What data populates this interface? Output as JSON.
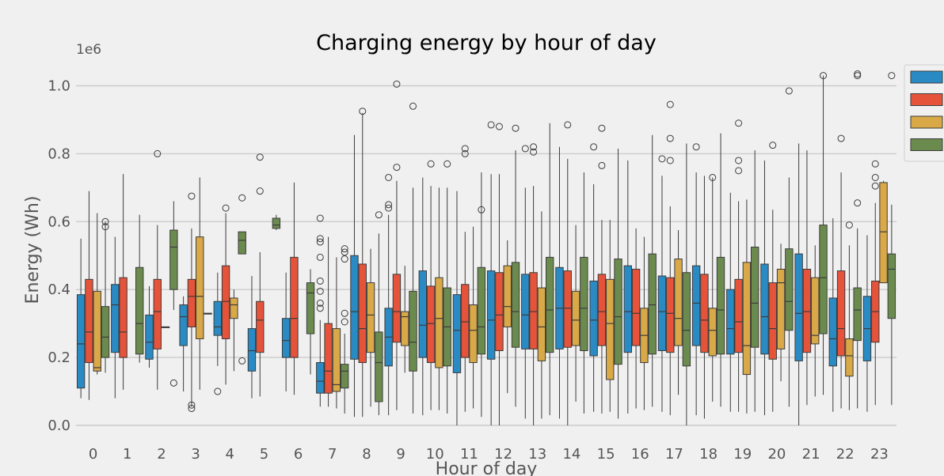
{
  "chart_data": {
    "type": "box",
    "title": "Charging energy by hour of day",
    "xlabel": "Hour of day",
    "ylabel": "Energy (Wh)",
    "y_offset_text": "1e6",
    "ylim": [
      -0.05,
      1.07
    ],
    "yticks": [
      "0.0",
      "0.2",
      "0.4",
      "0.6",
      "0.8",
      "1.0"
    ],
    "ytick_values": [
      0,
      0.2,
      0.4,
      0.6,
      0.8,
      1.0
    ],
    "grid": true,
    "legend_position": "right (labels cut off)",
    "categories": [
      "0",
      "1",
      "2",
      "3",
      "4",
      "5",
      "6",
      "7",
      "8",
      "9",
      "10",
      "11",
      "12",
      "13",
      "14",
      "15",
      "16",
      "17",
      "18",
      "19",
      "20",
      "21",
      "22",
      "23"
    ],
    "series": [
      {
        "color": "#2a8ac4",
        "boxes": [
          {
            "wl": 0.08,
            "q1": 0.11,
            "med": 0.24,
            "q3": 0.385,
            "wh": 0.55,
            "out": []
          },
          {
            "wl": 0.08,
            "q1": 0.215,
            "med": 0.355,
            "q3": 0.415,
            "wh": 0.555,
            "out": []
          },
          {
            "wl": 0.17,
            "q1": 0.195,
            "med": 0.245,
            "q3": 0.325,
            "wh": 0.41,
            "out": []
          },
          {
            "wl": 0.1,
            "q1": 0.235,
            "med": 0.32,
            "q3": 0.355,
            "wh": 0.38,
            "out": []
          },
          {
            "wl": 0.175,
            "q1": 0.265,
            "med": 0.29,
            "q3": 0.365,
            "wh": 0.45,
            "out": [
              0.1
            ]
          },
          {
            "wl": 0.08,
            "q1": 0.16,
            "med": 0.22,
            "q3": 0.285,
            "wh": 0.44,
            "out": []
          },
          {
            "wl": 0.1,
            "q1": 0.2,
            "med": 0.25,
            "q3": 0.315,
            "wh": 0.45,
            "out": []
          },
          {
            "wl": 0.055,
            "q1": 0.095,
            "med": 0.13,
            "q3": 0.185,
            "wh": 0.31,
            "out": [
              0.61,
              0.55,
              0.54,
              0.495,
              0.425,
              0.395,
              0.36,
              0.345
            ]
          },
          {
            "wl": 0.025,
            "q1": 0.195,
            "med": 0.335,
            "q3": 0.5,
            "wh": 0.855,
            "out": []
          },
          {
            "wl": 0.03,
            "q1": 0.175,
            "med": 0.26,
            "q3": 0.345,
            "wh": 0.62,
            "out": [
              0.73,
              0.65,
              0.64
            ]
          },
          {
            "wl": 0.03,
            "q1": 0.2,
            "med": 0.295,
            "q3": 0.455,
            "wh": 0.73,
            "out": []
          },
          {
            "wl": 0.0,
            "q1": 0.155,
            "med": 0.28,
            "q3": 0.385,
            "wh": 0.69,
            "out": []
          },
          {
            "wl": 0.0,
            "q1": 0.195,
            "med": 0.31,
            "q3": 0.455,
            "wh": 0.74,
            "out": [
              0.885
            ]
          },
          {
            "wl": 0.02,
            "q1": 0.225,
            "med": 0.325,
            "q3": 0.445,
            "wh": 0.7,
            "out": [
              0.815
            ]
          },
          {
            "wl": 0.02,
            "q1": 0.225,
            "med": 0.345,
            "q3": 0.465,
            "wh": 0.82,
            "out": []
          },
          {
            "wl": 0.04,
            "q1": 0.205,
            "med": 0.31,
            "q3": 0.425,
            "wh": 0.71,
            "out": [
              0.82
            ]
          },
          {
            "wl": 0.035,
            "q1": 0.215,
            "med": 0.335,
            "q3": 0.47,
            "wh": 0.78,
            "out": []
          },
          {
            "wl": 0.04,
            "q1": 0.22,
            "med": 0.335,
            "q3": 0.44,
            "wh": 0.735,
            "out": [
              0.785
            ]
          },
          {
            "wl": 0.03,
            "q1": 0.235,
            "med": 0.36,
            "q3": 0.47,
            "wh": 0.745,
            "out": [
              0.82
            ]
          },
          {
            "wl": 0.04,
            "q1": 0.21,
            "med": 0.285,
            "q3": 0.4,
            "wh": 0.685,
            "out": []
          },
          {
            "wl": 0.03,
            "q1": 0.21,
            "med": 0.32,
            "q3": 0.475,
            "wh": 0.78,
            "out": []
          },
          {
            "wl": 0.0,
            "q1": 0.19,
            "med": 0.33,
            "q3": 0.505,
            "wh": 0.83,
            "out": []
          },
          {
            "wl": 0.04,
            "q1": 0.175,
            "med": 0.255,
            "q3": 0.375,
            "wh": 0.61,
            "out": []
          },
          {
            "wl": 0.04,
            "q1": 0.19,
            "med": 0.285,
            "q3": 0.38,
            "wh": 0.56,
            "out": []
          }
        ]
      },
      {
        "color": "#e5533a",
        "boxes": [
          {
            "wl": 0.075,
            "q1": 0.185,
            "med": 0.275,
            "q3": 0.43,
            "wh": 0.69,
            "out": []
          },
          {
            "wl": 0.105,
            "q1": 0.2,
            "med": 0.275,
            "q3": 0.435,
            "wh": 0.74,
            "out": []
          },
          {
            "wl": 0.105,
            "q1": 0.225,
            "med": 0.335,
            "q3": 0.43,
            "wh": 0.59,
            "out": [
              0.8
            ]
          },
          {
            "wl": 0.055,
            "q1": 0.29,
            "med": 0.38,
            "q3": 0.43,
            "wh": 0.58,
            "out": [
              0.675,
              0.06,
              0.05
            ]
          },
          {
            "wl": 0.12,
            "q1": 0.255,
            "med": 0.365,
            "q3": 0.47,
            "wh": 0.625,
            "out": [
              0.64
            ]
          },
          {
            "wl": 0.085,
            "q1": 0.215,
            "med": 0.31,
            "q3": 0.365,
            "wh": 0.51,
            "out": [
              0.79,
              0.69
            ]
          },
          {
            "wl": 0.09,
            "q1": 0.2,
            "med": 0.315,
            "q3": 0.495,
            "wh": 0.715,
            "out": []
          },
          {
            "wl": 0.055,
            "q1": 0.095,
            "med": 0.16,
            "q3": 0.3,
            "wh": 0.555,
            "out": []
          },
          {
            "wl": 0.025,
            "q1": 0.185,
            "med": 0.285,
            "q3": 0.475,
            "wh": 0.92,
            "out": [
              0.925
            ]
          },
          {
            "wl": 0.045,
            "q1": 0.245,
            "med": 0.335,
            "q3": 0.445,
            "wh": 0.72,
            "out": [
              1.005,
              0.76
            ]
          },
          {
            "wl": 0.045,
            "q1": 0.185,
            "med": 0.3,
            "q3": 0.41,
            "wh": 0.705,
            "out": [
              0.77
            ]
          },
          {
            "wl": 0.04,
            "q1": 0.2,
            "med": 0.305,
            "q3": 0.415,
            "wh": 0.57,
            "out": [
              0.815,
              0.8
            ]
          },
          {
            "wl": 0.0,
            "q1": 0.22,
            "med": 0.325,
            "q3": 0.45,
            "wh": 0.74,
            "out": [
              0.88
            ]
          },
          {
            "wl": 0.0,
            "q1": 0.225,
            "med": 0.335,
            "q3": 0.45,
            "wh": 0.705,
            "out": [
              0.82,
              0.805
            ]
          },
          {
            "wl": 0.0,
            "q1": 0.23,
            "med": 0.345,
            "q3": 0.455,
            "wh": 0.785,
            "out": [
              0.885
            ]
          },
          {
            "wl": 0.035,
            "q1": 0.235,
            "med": 0.335,
            "q3": 0.445,
            "wh": 0.605,
            "out": [
              0.875,
              0.765
            ]
          },
          {
            "wl": 0.05,
            "q1": 0.235,
            "med": 0.33,
            "q3": 0.46,
            "wh": 0.58,
            "out": []
          },
          {
            "wl": 0.03,
            "q1": 0.215,
            "med": 0.33,
            "q3": 0.435,
            "wh": 0.645,
            "out": [
              0.945,
              0.845,
              0.78
            ]
          },
          {
            "wl": 0.02,
            "q1": 0.215,
            "med": 0.31,
            "q3": 0.445,
            "wh": 0.735,
            "out": []
          },
          {
            "wl": 0.04,
            "q1": 0.215,
            "med": 0.305,
            "q3": 0.43,
            "wh": 0.66,
            "out": [
              0.89,
              0.78,
              0.75
            ]
          },
          {
            "wl": 0.04,
            "q1": 0.195,
            "med": 0.285,
            "q3": 0.42,
            "wh": 0.635,
            "out": [
              0.825
            ]
          },
          {
            "wl": 0.06,
            "q1": 0.215,
            "med": 0.335,
            "q3": 0.46,
            "wh": 0.81,
            "out": []
          },
          {
            "wl": 0.05,
            "q1": 0.205,
            "med": 0.285,
            "q3": 0.455,
            "wh": 0.745,
            "out": [
              0.845
            ]
          },
          {
            "wl": 0.06,
            "q1": 0.245,
            "med": 0.335,
            "q3": 0.425,
            "wh": 0.655,
            "out": [
              0.77,
              0.73,
              0.705
            ]
          }
        ]
      },
      {
        "color": "#d9a847",
        "boxes": [
          {
            "wl": 0.15,
            "q1": 0.16,
            "med": 0.17,
            "q3": 0.395,
            "wh": 0.625,
            "out": []
          },
          null,
          {
            "wl": 0.29,
            "q1": 0.29,
            "med": 0.29,
            "q3": 0.29,
            "wh": 0.29,
            "out": []
          },
          {
            "wl": 0.105,
            "q1": 0.255,
            "med": 0.38,
            "q3": 0.555,
            "wh": 0.73,
            "out": []
          },
          {
            "wl": 0.16,
            "q1": 0.315,
            "med": 0.355,
            "q3": 0.375,
            "wh": 0.4,
            "out": []
          },
          null,
          null,
          {
            "wl": 0.05,
            "q1": 0.1,
            "med": 0.12,
            "q3": 0.285,
            "wh": 0.495,
            "out": []
          },
          {
            "wl": 0.055,
            "q1": 0.215,
            "med": 0.325,
            "q3": 0.42,
            "wh": 0.52,
            "out": []
          },
          {
            "wl": 0.155,
            "q1": 0.235,
            "med": 0.32,
            "q3": 0.335,
            "wh": 0.47,
            "out": []
          },
          {
            "wl": 0.045,
            "q1": 0.17,
            "med": 0.315,
            "q3": 0.435,
            "wh": 0.7,
            "out": []
          },
          {
            "wl": 0.05,
            "q1": 0.185,
            "med": 0.28,
            "q3": 0.355,
            "wh": 0.585,
            "out": []
          },
          {
            "wl": 0.095,
            "q1": 0.29,
            "med": 0.35,
            "q3": 0.47,
            "wh": 0.545,
            "out": []
          },
          {
            "wl": 0.02,
            "q1": 0.19,
            "med": 0.29,
            "q3": 0.405,
            "wh": 0.63,
            "out": []
          },
          {
            "wl": 0.07,
            "q1": 0.235,
            "med": 0.31,
            "q3": 0.395,
            "wh": 0.59,
            "out": []
          },
          {
            "wl": 0.04,
            "q1": 0.135,
            "med": 0.3,
            "q3": 0.43,
            "wh": 0.605,
            "out": []
          },
          {
            "wl": 0.045,
            "q1": 0.185,
            "med": 0.265,
            "q3": 0.345,
            "wh": 0.555,
            "out": []
          },
          {
            "wl": 0.09,
            "q1": 0.235,
            "med": 0.315,
            "q3": 0.49,
            "wh": 0.575,
            "out": []
          },
          {
            "wl": 0.07,
            "q1": 0.205,
            "med": 0.28,
            "q3": 0.345,
            "wh": 0.73,
            "out": [
              0.73
            ]
          },
          {
            "wl": 0.035,
            "q1": 0.15,
            "med": 0.235,
            "q3": 0.48,
            "wh": 0.665,
            "out": []
          },
          {
            "wl": 0.13,
            "q1": 0.225,
            "med": 0.42,
            "q3": 0.46,
            "wh": 0.535,
            "out": []
          },
          {
            "wl": 0.085,
            "q1": 0.24,
            "med": 0.265,
            "q3": 0.435,
            "wh": 0.53,
            "out": []
          },
          {
            "wl": 0.045,
            "q1": 0.145,
            "med": 0.205,
            "q3": 0.255,
            "wh": 0.53,
            "out": [
              0.59
            ]
          },
          {
            "wl": 0.45,
            "q1": 0.42,
            "med": 0.57,
            "q3": 0.715,
            "wh": 0.72,
            "out": []
          }
        ]
      },
      {
        "color": "#6b8b4e",
        "boxes": [
          {
            "wl": 0.155,
            "q1": 0.2,
            "med": 0.26,
            "q3": 0.35,
            "wh": 0.6,
            "out": [
              0.6,
              0.585
            ]
          },
          {
            "wl": 0.185,
            "q1": 0.21,
            "med": 0.3,
            "q3": 0.465,
            "wh": 0.62,
            "out": []
          },
          {
            "wl": 0.34,
            "q1": 0.4,
            "med": 0.525,
            "q3": 0.575,
            "wh": 0.66,
            "out": [
              0.125
            ]
          },
          {
            "wl": 0.33,
            "q1": 0.33,
            "med": 0.33,
            "q3": 0.33,
            "wh": 0.33,
            "out": []
          },
          {
            "wl": 0.505,
            "q1": 0.505,
            "med": 0.545,
            "q3": 0.57,
            "wh": 0.57,
            "out": [
              0.67,
              0.19
            ]
          },
          {
            "wl": 0.575,
            "q1": 0.58,
            "med": 0.59,
            "q3": 0.61,
            "wh": 0.62,
            "out": []
          },
          {
            "wl": 0.15,
            "q1": 0.27,
            "med": 0.39,
            "q3": 0.42,
            "wh": 0.46,
            "out": []
          },
          {
            "wl": 0.035,
            "q1": 0.11,
            "med": 0.16,
            "q3": 0.18,
            "wh": 0.27,
            "out": [
              0.52,
              0.51,
              0.49,
              0.33,
              0.305
            ]
          },
          {
            "wl": 0.03,
            "q1": 0.07,
            "med": 0.185,
            "q3": 0.275,
            "wh": 0.565,
            "out": [
              0.62
            ]
          },
          {
            "wl": 0.035,
            "q1": 0.16,
            "med": 0.245,
            "q3": 0.395,
            "wh": 0.7,
            "out": [
              0.94
            ]
          },
          {
            "wl": 0.035,
            "q1": 0.175,
            "med": 0.29,
            "q3": 0.405,
            "wh": 0.7,
            "out": [
              0.77
            ]
          },
          {
            "wl": 0.025,
            "q1": 0.21,
            "med": 0.29,
            "q3": 0.465,
            "wh": 0.745,
            "out": [
              0.635
            ]
          },
          {
            "wl": 0.055,
            "q1": 0.23,
            "med": 0.335,
            "q3": 0.48,
            "wh": 0.81,
            "out": [
              0.875
            ]
          },
          {
            "wl": 0.03,
            "q1": 0.215,
            "med": 0.34,
            "q3": 0.495,
            "wh": 0.89,
            "out": []
          },
          {
            "wl": 0.035,
            "q1": 0.22,
            "med": 0.345,
            "q3": 0.495,
            "wh": 0.745,
            "out": []
          },
          {
            "wl": 0.02,
            "q1": 0.18,
            "med": 0.32,
            "q3": 0.49,
            "wh": 0.815,
            "out": []
          },
          {
            "wl": 0.055,
            "q1": 0.21,
            "med": 0.355,
            "q3": 0.505,
            "wh": 0.855,
            "out": []
          },
          {
            "wl": 0.0,
            "q1": 0.175,
            "med": 0.28,
            "q3": 0.45,
            "wh": 0.83,
            "out": []
          },
          {
            "wl": 0.055,
            "q1": 0.21,
            "med": 0.34,
            "q3": 0.495,
            "wh": 0.86,
            "out": []
          },
          {
            "wl": 0.04,
            "q1": 0.23,
            "med": 0.36,
            "q3": 0.525,
            "wh": 0.81,
            "out": []
          },
          {
            "wl": 0.055,
            "q1": 0.28,
            "med": 0.365,
            "q3": 0.52,
            "wh": 0.73,
            "out": [
              0.985
            ]
          },
          {
            "wl": 0.09,
            "q1": 0.27,
            "med": 0.435,
            "q3": 0.59,
            "wh": 1.03,
            "out": [
              1.03
            ]
          },
          {
            "wl": 0.05,
            "q1": 0.25,
            "med": 0.34,
            "q3": 0.405,
            "wh": 0.58,
            "out": [
              0.655,
              1.03,
              1.035
            ]
          },
          {
            "wl": 0.06,
            "q1": 0.315,
            "med": 0.46,
            "q3": 0.505,
            "wh": 0.65,
            "out": [
              1.03
            ]
          }
        ]
      }
    ]
  }
}
